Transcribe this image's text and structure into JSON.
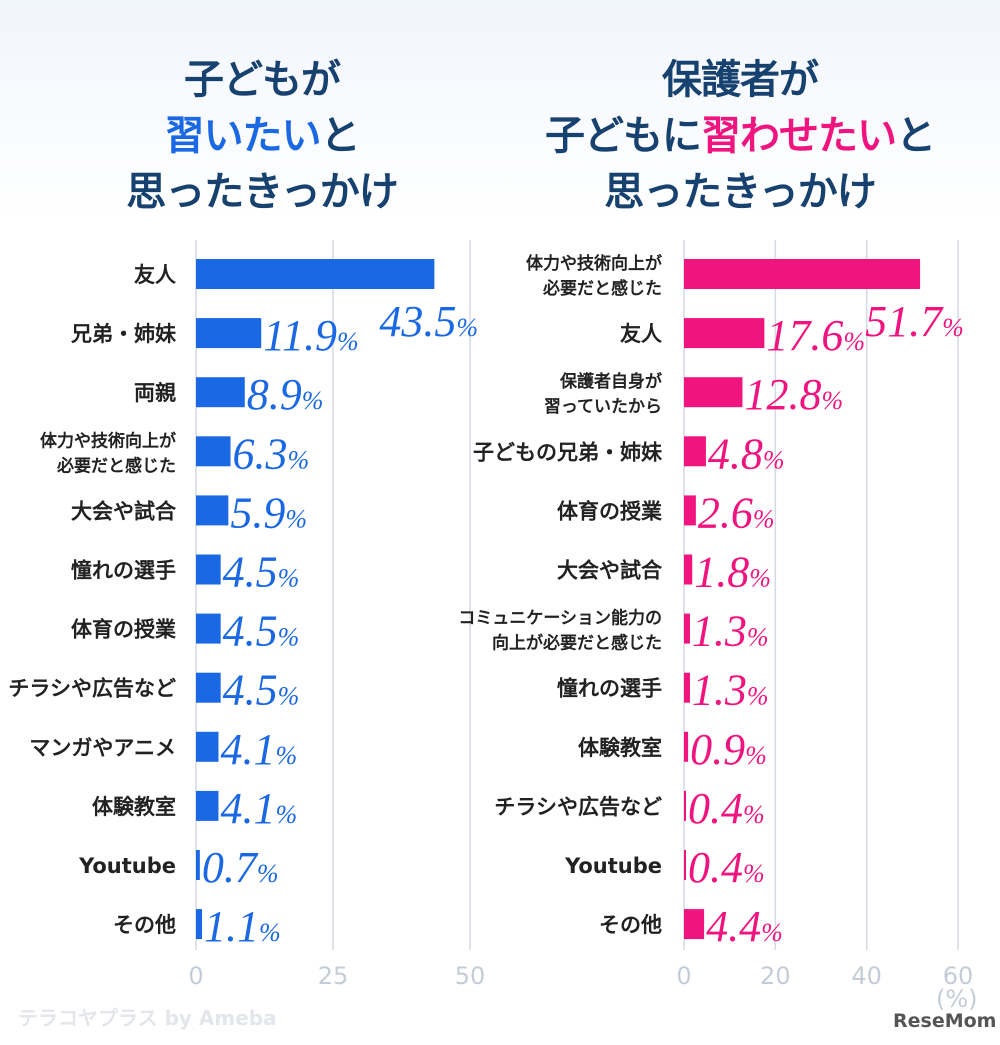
{
  "left_title": {
    "line1": "子どもが",
    "line2_hl": "習いたい",
    "line2_rest": "と",
    "line3": "思ったきっかけ"
  },
  "right_title": {
    "line1": "保護者が",
    "line2_pre": "子どもに",
    "line2_hl": "習わせたい",
    "line2_rest": "と",
    "line3": "思ったきっかけ"
  },
  "colors": {
    "blue": "#1a68e3",
    "pink": "#f0147e",
    "title": "#17416f"
  },
  "unit_label": "(%)",
  "logos": {
    "left": "テラコヤプラス by Ameba",
    "right": "ReseMom"
  },
  "chart_data": [
    {
      "type": "bar",
      "orientation": "horizontal",
      "title": "子どもが習いたいと思ったきっかけ",
      "xlim": [
        0,
        50
      ],
      "xticks": [
        "0",
        "25",
        "50"
      ],
      "categories": [
        [
          "友人"
        ],
        [
          "兄弟・姉妹"
        ],
        [
          "両親"
        ],
        [
          "体力や技術向上が",
          "必要だと感じた"
        ],
        [
          "大会や試合"
        ],
        [
          "憧れの選手"
        ],
        [
          "体育の授業"
        ],
        [
          "チラシや広告など"
        ],
        [
          "マンガやアニメ"
        ],
        [
          "体験教室"
        ],
        [
          "Youtube"
        ],
        [
          "その他"
        ]
      ],
      "values": [
        43.5,
        11.9,
        8.9,
        6.3,
        5.9,
        4.5,
        4.5,
        4.5,
        4.1,
        4.1,
        0.7,
        1.1
      ],
      "labels": [
        "43.5",
        "11.9",
        "8.9",
        "6.3",
        "5.9",
        "4.5",
        "4.5",
        "4.5",
        "4.1",
        "4.1",
        "0.7",
        "1.1"
      ]
    },
    {
      "type": "bar",
      "orientation": "horizontal",
      "title": "保護者が子どもに習わせたいと思ったきっかけ",
      "xlim": [
        0,
        60
      ],
      "xticks": [
        "0",
        "20",
        "40",
        "60"
      ],
      "categories": [
        [
          "体力や技術向上が",
          "必要だと感じた"
        ],
        [
          "友人"
        ],
        [
          "保護者自身が",
          "習っていたから"
        ],
        [
          "子どもの兄弟・姉妹"
        ],
        [
          "体育の授業"
        ],
        [
          "大会や試合"
        ],
        [
          "コミュニケーション能力の",
          "向上が必要だと感じた"
        ],
        [
          "憧れの選手"
        ],
        [
          "体験教室"
        ],
        [
          "チラシや広告など"
        ],
        [
          "Youtube"
        ],
        [
          "その他"
        ]
      ],
      "values": [
        51.7,
        17.6,
        12.8,
        4.8,
        2.6,
        1.8,
        1.3,
        1.3,
        0.9,
        0.4,
        0.4,
        4.4
      ],
      "labels": [
        "51.7",
        "17.6",
        "12.8",
        "4.8",
        "2.6",
        "1.8",
        "1.3",
        "1.3",
        "0.9",
        "0.4",
        "0.4",
        "4.4"
      ]
    }
  ]
}
